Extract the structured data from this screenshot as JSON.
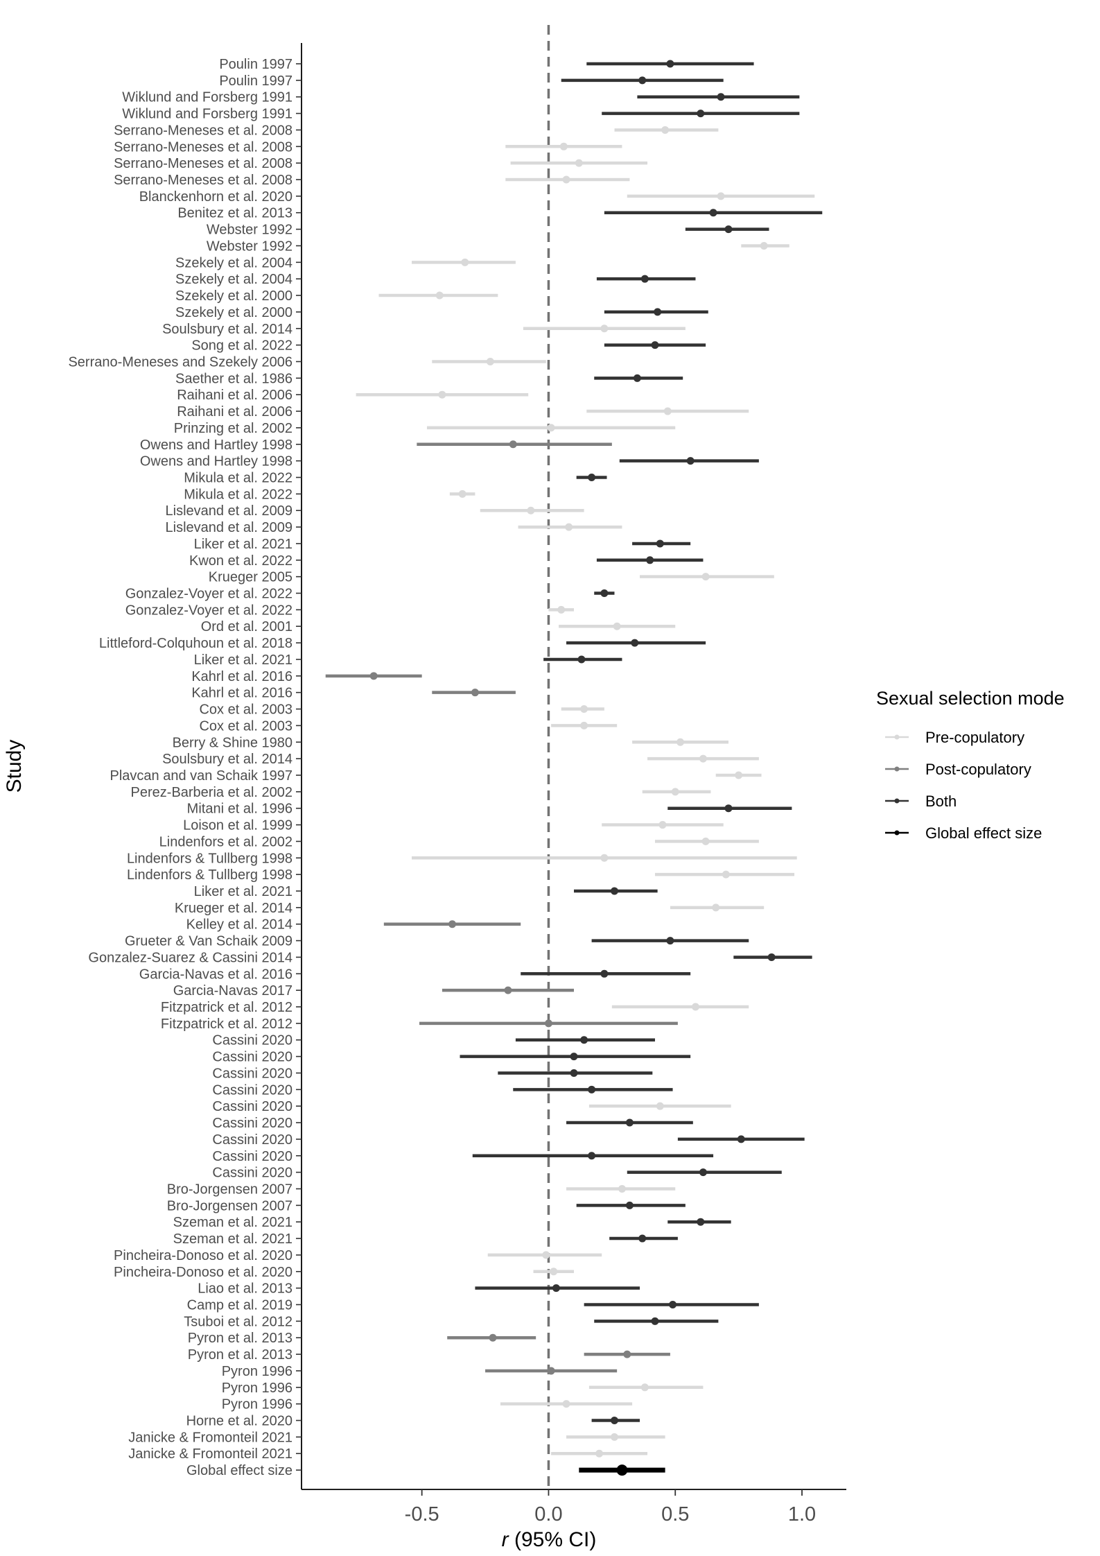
{
  "chart_data": {
    "type": "forest",
    "xlabel_italic": "r",
    "xlabel_rest": " (95% CI)",
    "ylabel": "Study",
    "xlim": [
      -0.975,
      1.175
    ],
    "xticks": [
      {
        "value": -0.5,
        "label": "-0.5"
      },
      {
        "value": 0.0,
        "label": "0.0"
      },
      {
        "value": 0.5,
        "label": "0.5"
      },
      {
        "value": 1.0,
        "label": "1.0"
      }
    ],
    "reference_line": 0,
    "legend": {
      "title": "Sexual selection mode",
      "position": "right",
      "entries": [
        {
          "label": "Pre-copulatory",
          "color": "#d9d9d9"
        },
        {
          "label": "Post-copulatory",
          "color": "#7f7f7f"
        },
        {
          "label": "Both",
          "color": "#333333"
        },
        {
          "label": "Global effect size",
          "color": "#000000"
        }
      ]
    },
    "colors": {
      "Pre": "#d9d9d9",
      "Post": "#7f7f7f",
      "Both": "#333333",
      "Global": "#000000"
    },
    "studies": [
      {
        "label": "Poulin 1997",
        "r": 0.48,
        "lo": 0.15,
        "hi": 0.81,
        "mode": "Both"
      },
      {
        "label": "Poulin 1997",
        "r": 0.37,
        "lo": 0.05,
        "hi": 0.69,
        "mode": "Both"
      },
      {
        "label": "Wiklund and Forsberg 1991",
        "r": 0.68,
        "lo": 0.35,
        "hi": 0.99,
        "mode": "Both"
      },
      {
        "label": "Wiklund and Forsberg 1991",
        "r": 0.6,
        "lo": 0.21,
        "hi": 0.99,
        "mode": "Both"
      },
      {
        "label": "Serrano-Meneses et al. 2008",
        "r": 0.46,
        "lo": 0.26,
        "hi": 0.67,
        "mode": "Pre"
      },
      {
        "label": "Serrano-Meneses et al. 2008",
        "r": 0.06,
        "lo": -0.17,
        "hi": 0.29,
        "mode": "Pre"
      },
      {
        "label": "Serrano-Meneses et al. 2008",
        "r": 0.12,
        "lo": -0.15,
        "hi": 0.39,
        "mode": "Pre"
      },
      {
        "label": "Serrano-Meneses et al. 2008",
        "r": 0.07,
        "lo": -0.17,
        "hi": 0.32,
        "mode": "Pre"
      },
      {
        "label": "Blanckenhorn et al. 2020",
        "r": 0.68,
        "lo": 0.31,
        "hi": 1.05,
        "mode": "Pre"
      },
      {
        "label": "Benitez et al. 2013",
        "r": 0.65,
        "lo": 0.22,
        "hi": 1.08,
        "mode": "Both"
      },
      {
        "label": "Webster 1992",
        "r": 0.71,
        "lo": 0.54,
        "hi": 0.87,
        "mode": "Both"
      },
      {
        "label": "Webster 1992",
        "r": 0.85,
        "lo": 0.76,
        "hi": 0.95,
        "mode": "Pre"
      },
      {
        "label": "Szekely et al. 2004",
        "r": -0.33,
        "lo": -0.54,
        "hi": -0.13,
        "mode": "Pre"
      },
      {
        "label": "Szekely et al. 2004",
        "r": 0.38,
        "lo": 0.19,
        "hi": 0.58,
        "mode": "Both"
      },
      {
        "label": "Szekely et al. 2000",
        "r": -0.43,
        "lo": -0.67,
        "hi": -0.2,
        "mode": "Pre"
      },
      {
        "label": "Szekely et al. 2000",
        "r": 0.43,
        "lo": 0.22,
        "hi": 0.63,
        "mode": "Both"
      },
      {
        "label": "Soulsbury et al. 2014",
        "r": 0.22,
        "lo": -0.1,
        "hi": 0.54,
        "mode": "Pre"
      },
      {
        "label": "Song et al. 2022",
        "r": 0.42,
        "lo": 0.22,
        "hi": 0.62,
        "mode": "Both"
      },
      {
        "label": "Serrano-Meneses and Szekely 2006",
        "r": -0.23,
        "lo": -0.46,
        "hi": -0.01,
        "mode": "Pre"
      },
      {
        "label": "Saether et al. 1986",
        "r": 0.35,
        "lo": 0.18,
        "hi": 0.53,
        "mode": "Both"
      },
      {
        "label": "Raihani et al. 2006",
        "r": -0.42,
        "lo": -0.76,
        "hi": -0.08,
        "mode": "Pre"
      },
      {
        "label": "Raihani et al. 2006",
        "r": 0.47,
        "lo": 0.15,
        "hi": 0.79,
        "mode": "Pre"
      },
      {
        "label": "Prinzing et al. 2002",
        "r": 0.01,
        "lo": -0.48,
        "hi": 0.5,
        "mode": "Pre"
      },
      {
        "label": "Owens and Hartley 1998",
        "r": -0.14,
        "lo": -0.52,
        "hi": 0.25,
        "mode": "Post"
      },
      {
        "label": "Owens and Hartley 1998",
        "r": 0.56,
        "lo": 0.28,
        "hi": 0.83,
        "mode": "Both"
      },
      {
        "label": "Mikula et al. 2022",
        "r": 0.17,
        "lo": 0.11,
        "hi": 0.23,
        "mode": "Both"
      },
      {
        "label": "Mikula et al. 2022",
        "r": -0.34,
        "lo": -0.39,
        "hi": -0.29,
        "mode": "Pre"
      },
      {
        "label": "Lislevand et al. 2009",
        "r": -0.07,
        "lo": -0.27,
        "hi": 0.14,
        "mode": "Pre"
      },
      {
        "label": "Lislevand et al. 2009",
        "r": 0.08,
        "lo": -0.12,
        "hi": 0.29,
        "mode": "Pre"
      },
      {
        "label": "Liker et al. 2021",
        "r": 0.44,
        "lo": 0.33,
        "hi": 0.56,
        "mode": "Both"
      },
      {
        "label": "Kwon et al. 2022",
        "r": 0.4,
        "lo": 0.19,
        "hi": 0.61,
        "mode": "Both"
      },
      {
        "label": "Krueger 2005",
        "r": 0.62,
        "lo": 0.36,
        "hi": 0.89,
        "mode": "Pre"
      },
      {
        "label": "Gonzalez-Voyer et al. 2022",
        "r": 0.22,
        "lo": 0.18,
        "hi": 0.26,
        "mode": "Both"
      },
      {
        "label": "Gonzalez-Voyer et al. 2022",
        "r": 0.05,
        "lo": 0.0,
        "hi": 0.1,
        "mode": "Pre"
      },
      {
        "label": "Ord et al. 2001",
        "r": 0.27,
        "lo": 0.04,
        "hi": 0.5,
        "mode": "Pre"
      },
      {
        "label": "Littleford-Colquhoun et al. 2018",
        "r": 0.34,
        "lo": 0.07,
        "hi": 0.62,
        "mode": "Both"
      },
      {
        "label": "Liker et al. 2021",
        "r": 0.13,
        "lo": -0.02,
        "hi": 0.29,
        "mode": "Both"
      },
      {
        "label": "Kahrl et al. 2016",
        "r": -0.69,
        "lo": -0.88,
        "hi": -0.5,
        "mode": "Post"
      },
      {
        "label": "Kahrl et al. 2016",
        "r": -0.29,
        "lo": -0.46,
        "hi": -0.13,
        "mode": "Post"
      },
      {
        "label": "Cox et al. 2003",
        "r": 0.14,
        "lo": 0.05,
        "hi": 0.22,
        "mode": "Pre"
      },
      {
        "label": "Cox et al. 2003",
        "r": 0.14,
        "lo": 0.01,
        "hi": 0.27,
        "mode": "Pre"
      },
      {
        "label": "Berry & Shine 1980",
        "r": 0.52,
        "lo": 0.33,
        "hi": 0.71,
        "mode": "Pre"
      },
      {
        "label": "Soulsbury et al. 2014",
        "r": 0.61,
        "lo": 0.39,
        "hi": 0.83,
        "mode": "Pre"
      },
      {
        "label": "Plavcan and van Schaik 1997",
        "r": 0.75,
        "lo": 0.66,
        "hi": 0.84,
        "mode": "Pre"
      },
      {
        "label": "Perez-Barberia et al. 2002",
        "r": 0.5,
        "lo": 0.37,
        "hi": 0.64,
        "mode": "Pre"
      },
      {
        "label": "Mitani et al. 1996",
        "r": 0.71,
        "lo": 0.47,
        "hi": 0.96,
        "mode": "Both"
      },
      {
        "label": "Loison et al. 1999",
        "r": 0.45,
        "lo": 0.21,
        "hi": 0.69,
        "mode": "Pre"
      },
      {
        "label": "Lindenfors et al. 2002",
        "r": 0.62,
        "lo": 0.42,
        "hi": 0.83,
        "mode": "Pre"
      },
      {
        "label": "Lindenfors & Tullberg 1998",
        "r": 0.22,
        "lo": -0.54,
        "hi": 0.98,
        "mode": "Pre"
      },
      {
        "label": "Lindenfors & Tullberg 1998",
        "r": 0.7,
        "lo": 0.42,
        "hi": 0.97,
        "mode": "Pre"
      },
      {
        "label": "Liker et al. 2021",
        "r": 0.26,
        "lo": 0.1,
        "hi": 0.43,
        "mode": "Both"
      },
      {
        "label": "Krueger et al. 2014",
        "r": 0.66,
        "lo": 0.48,
        "hi": 0.85,
        "mode": "Pre"
      },
      {
        "label": "Kelley et al. 2014",
        "r": -0.38,
        "lo": -0.65,
        "hi": -0.11,
        "mode": "Post"
      },
      {
        "label": "Grueter & Van Schaik 2009",
        "r": 0.48,
        "lo": 0.17,
        "hi": 0.79,
        "mode": "Both"
      },
      {
        "label": "Gonzalez-Suarez & Cassini 2014",
        "r": 0.88,
        "lo": 0.73,
        "hi": 1.04,
        "mode": "Both"
      },
      {
        "label": "Garcia-Navas et al. 2016",
        "r": 0.22,
        "lo": -0.11,
        "hi": 0.56,
        "mode": "Both"
      },
      {
        "label": "Garcia-Navas 2017",
        "r": -0.16,
        "lo": -0.42,
        "hi": 0.1,
        "mode": "Post"
      },
      {
        "label": "Fitzpatrick et al. 2012",
        "r": 0.58,
        "lo": 0.25,
        "hi": 0.79,
        "mode": "Pre"
      },
      {
        "label": "Fitzpatrick et al. 2012",
        "r": 0.0,
        "lo": -0.51,
        "hi": 0.51,
        "mode": "Post"
      },
      {
        "label": "Cassini 2020",
        "r": 0.14,
        "lo": -0.13,
        "hi": 0.42,
        "mode": "Both"
      },
      {
        "label": "Cassini 2020",
        "r": 0.1,
        "lo": -0.35,
        "hi": 0.56,
        "mode": "Both"
      },
      {
        "label": "Cassini 2020",
        "r": 0.1,
        "lo": -0.2,
        "hi": 0.41,
        "mode": "Both"
      },
      {
        "label": "Cassini 2020",
        "r": 0.17,
        "lo": -0.14,
        "hi": 0.49,
        "mode": "Both"
      },
      {
        "label": "Cassini 2020",
        "r": 0.44,
        "lo": 0.16,
        "hi": 0.72,
        "mode": "Pre"
      },
      {
        "label": "Cassini 2020",
        "r": 0.32,
        "lo": 0.07,
        "hi": 0.57,
        "mode": "Both"
      },
      {
        "label": "Cassini 2020",
        "r": 0.76,
        "lo": 0.51,
        "hi": 1.01,
        "mode": "Both"
      },
      {
        "label": "Cassini 2020",
        "r": 0.17,
        "lo": -0.3,
        "hi": 0.65,
        "mode": "Both"
      },
      {
        "label": "Cassini 2020",
        "r": 0.61,
        "lo": 0.31,
        "hi": 0.92,
        "mode": "Both"
      },
      {
        "label": "Bro-Jorgensen 2007",
        "r": 0.29,
        "lo": 0.07,
        "hi": 0.5,
        "mode": "Pre"
      },
      {
        "label": "Bro-Jorgensen 2007",
        "r": 0.32,
        "lo": 0.11,
        "hi": 0.54,
        "mode": "Both"
      },
      {
        "label": "Szeman et al. 2021",
        "r": 0.6,
        "lo": 0.47,
        "hi": 0.72,
        "mode": "Both"
      },
      {
        "label": "Szeman et al. 2021",
        "r": 0.37,
        "lo": 0.24,
        "hi": 0.51,
        "mode": "Both"
      },
      {
        "label": "Pincheira-Donoso et al. 2020",
        "r": -0.01,
        "lo": -0.24,
        "hi": 0.21,
        "mode": "Pre"
      },
      {
        "label": "Pincheira-Donoso et al. 2020",
        "r": 0.02,
        "lo": -0.06,
        "hi": 0.1,
        "mode": "Pre"
      },
      {
        "label": "Liao et al. 2013",
        "r": 0.03,
        "lo": -0.29,
        "hi": 0.36,
        "mode": "Both"
      },
      {
        "label": "Camp et al. 2019",
        "r": 0.49,
        "lo": 0.14,
        "hi": 0.83,
        "mode": "Both"
      },
      {
        "label": "Tsuboi et al. 2012",
        "r": 0.42,
        "lo": 0.18,
        "hi": 0.67,
        "mode": "Both"
      },
      {
        "label": "Pyron et al. 2013",
        "r": -0.22,
        "lo": -0.4,
        "hi": -0.05,
        "mode": "Post"
      },
      {
        "label": "Pyron et al. 2013",
        "r": 0.31,
        "lo": 0.14,
        "hi": 0.48,
        "mode": "Post"
      },
      {
        "label": "Pyron 1996",
        "r": 0.01,
        "lo": -0.25,
        "hi": 0.27,
        "mode": "Post"
      },
      {
        "label": "Pyron 1996",
        "r": 0.38,
        "lo": 0.16,
        "hi": 0.61,
        "mode": "Pre"
      },
      {
        "label": "Pyron 1996",
        "r": 0.07,
        "lo": -0.19,
        "hi": 0.33,
        "mode": "Pre"
      },
      {
        "label": "Horne et al. 2020",
        "r": 0.26,
        "lo": 0.17,
        "hi": 0.36,
        "mode": "Both"
      },
      {
        "label": "Janicke & Fromonteil 2021",
        "r": 0.26,
        "lo": 0.07,
        "hi": 0.46,
        "mode": "Pre"
      },
      {
        "label": "Janicke & Fromonteil 2021",
        "r": 0.2,
        "lo": 0.01,
        "hi": 0.39,
        "mode": "Pre"
      },
      {
        "label": "Global effect size",
        "r": 0.29,
        "lo": 0.12,
        "hi": 0.46,
        "mode": "Global"
      }
    ]
  }
}
